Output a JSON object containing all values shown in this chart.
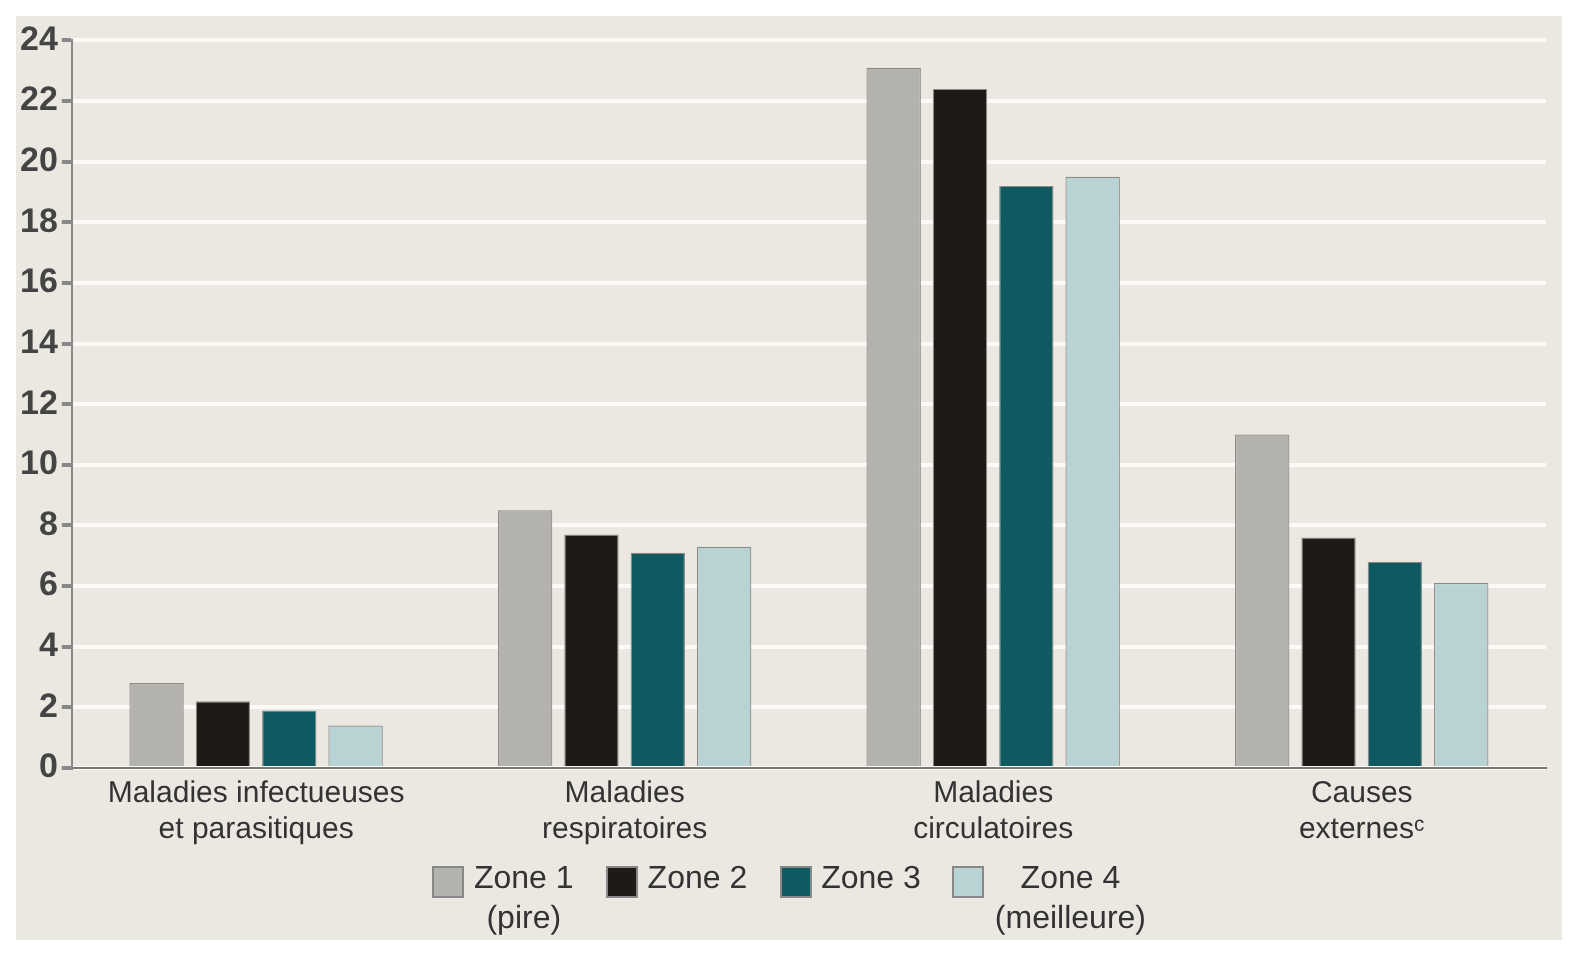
{
  "chart_data": {
    "type": "bar",
    "categories": [
      "Maladies infectueuses\net parasitiques",
      "Maladies\nrespiratoires",
      "Maladies\ncirculatoires",
      "Causes\nexternesᶜ"
    ],
    "series": [
      {
        "name": "Zone 1\n(pire)",
        "color": "#b4b2ad",
        "values": [
          2.8,
          8.5,
          23.1,
          11.0
        ]
      },
      {
        "name": "Zone 2",
        "color": "#1e1a16",
        "values": [
          2.2,
          7.7,
          22.4,
          7.6
        ]
      },
      {
        "name": "Zone 3",
        "color": "#0f5a60",
        "values": [
          1.9,
          7.1,
          19.2,
          6.8
        ]
      },
      {
        "name": "Zone 4\n(meilleure)",
        "color": "#b9d3d5",
        "values": [
          1.4,
          7.3,
          19.5,
          6.1
        ]
      }
    ],
    "ylim": [
      0,
      24
    ],
    "yticks": [
      0,
      2,
      4,
      6,
      8,
      10,
      12,
      14,
      16,
      18,
      20,
      22,
      24
    ],
    "grid": "y",
    "legend": "bottom"
  }
}
